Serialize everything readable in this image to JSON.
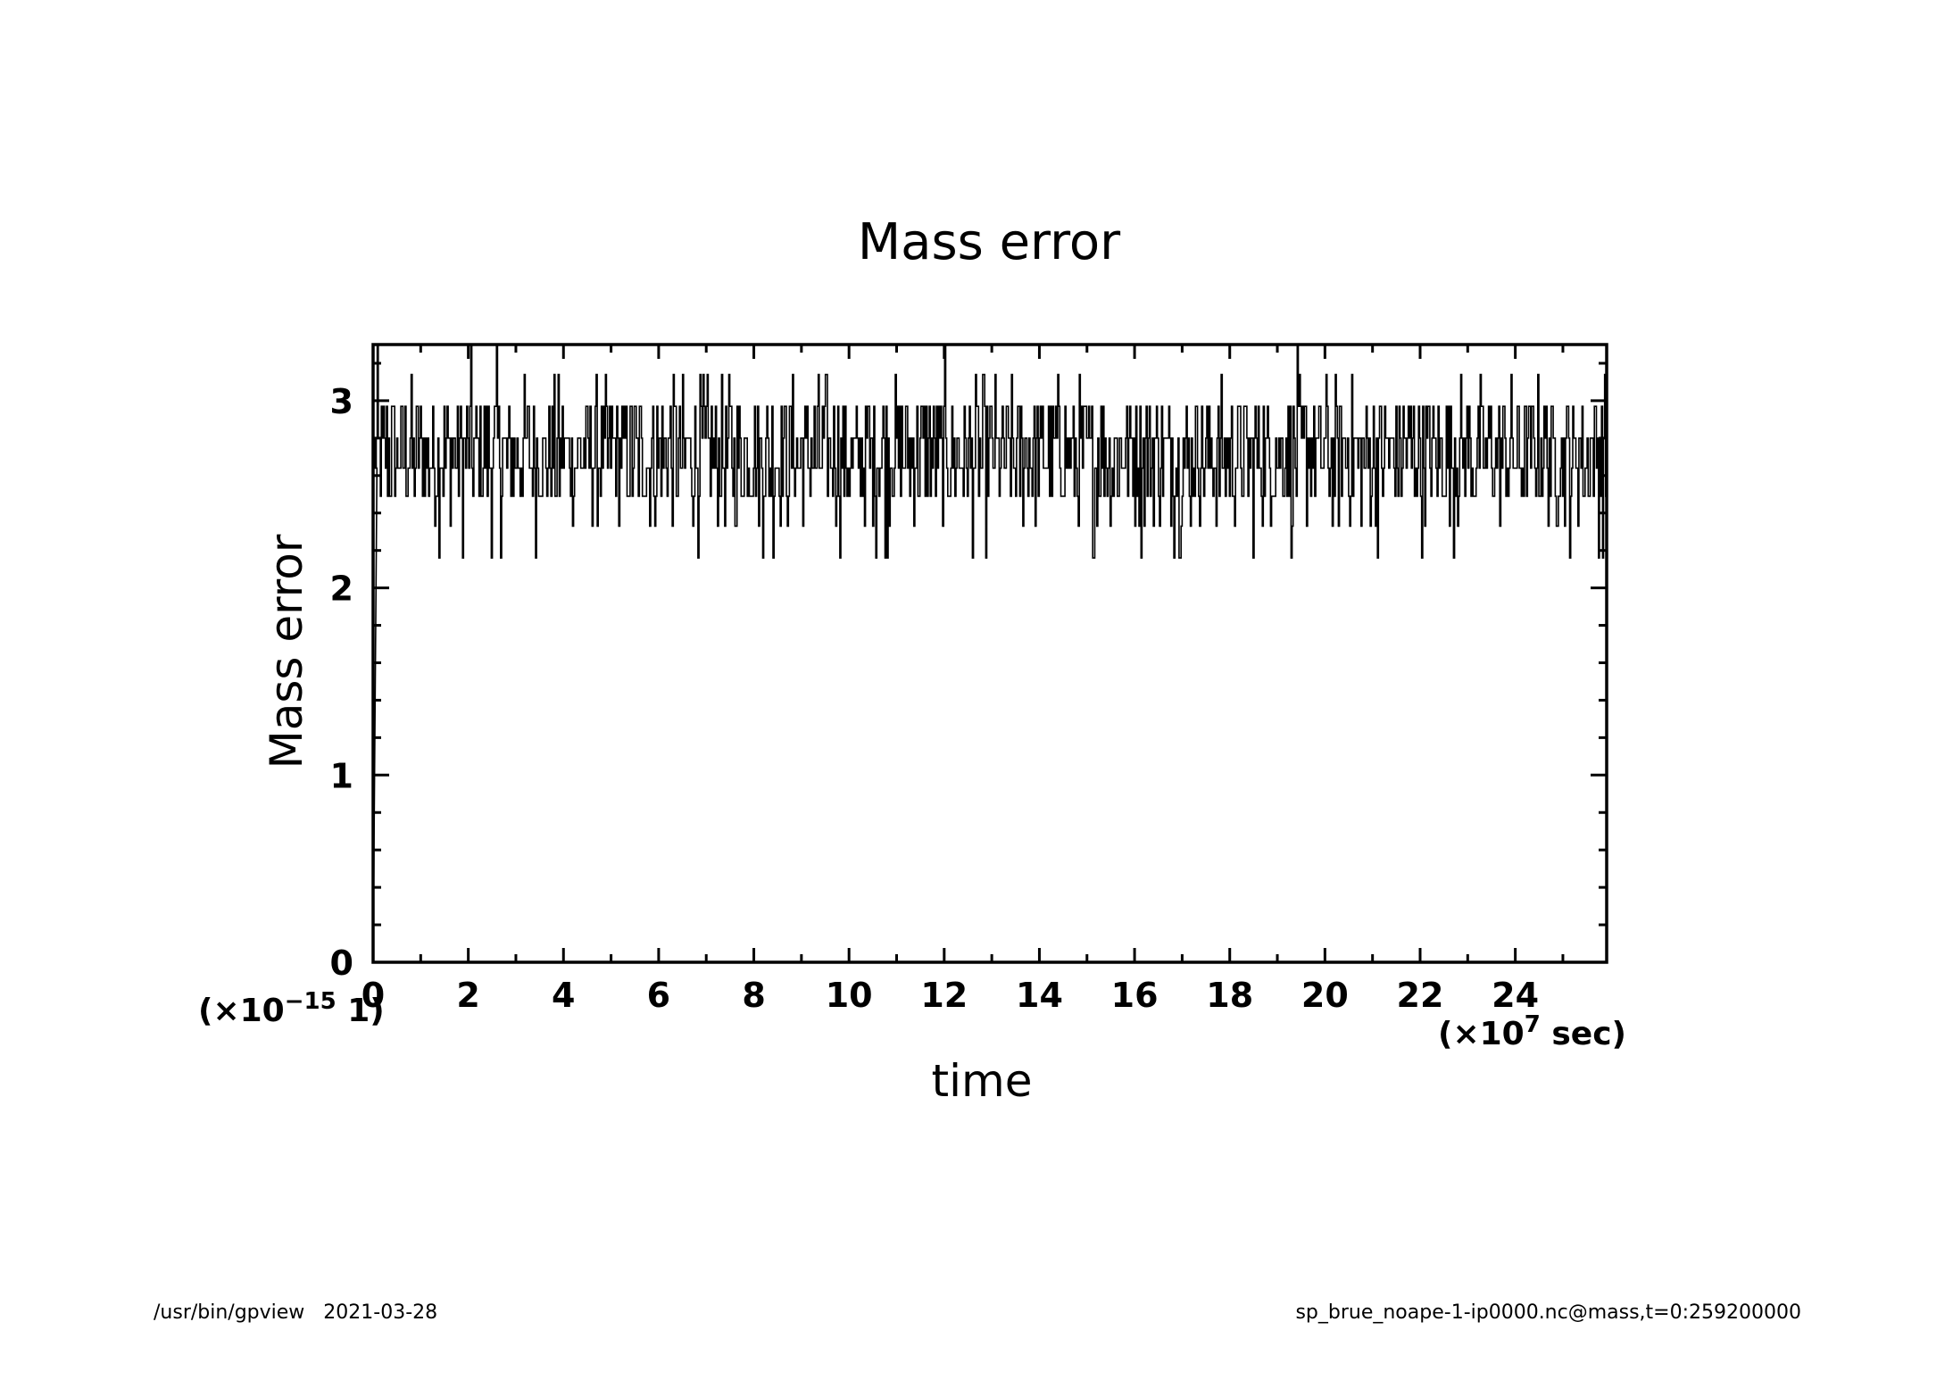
{
  "footer": {
    "left": "/usr/bin/gpview   2021-03-28",
    "right": "sp_brue_noape-1-ip0000.nc@mass,t=0:259200000"
  },
  "chart_data": {
    "type": "line",
    "title": "Mass error",
    "xlabel": "time",
    "ylabel": "Mass error",
    "x_scale_label": "(×10^7 sec)",
    "y_scale_label": "(×10^-15 1)",
    "xlim": [
      0,
      25.92
    ],
    "ylim": [
      0,
      3.3
    ],
    "x_ticks": [
      0,
      2,
      4,
      6,
      8,
      10,
      12,
      14,
      16,
      18,
      20,
      22,
      24
    ],
    "y_ticks": [
      0,
      1,
      2,
      3
    ],
    "grid": false,
    "series": [
      {
        "values_note_free": true,
        "discrete_levels": [
          2.16,
          2.33,
          2.49,
          2.64,
          2.8,
          2.97,
          3.14,
          3.3
        ],
        "typical_range": [
          2.49,
          2.97
        ],
        "mean": 2.7,
        "x_start": 0,
        "x_end": 25.92,
        "initial_value": 0,
        "sample_count": 1200
      }
    ]
  }
}
